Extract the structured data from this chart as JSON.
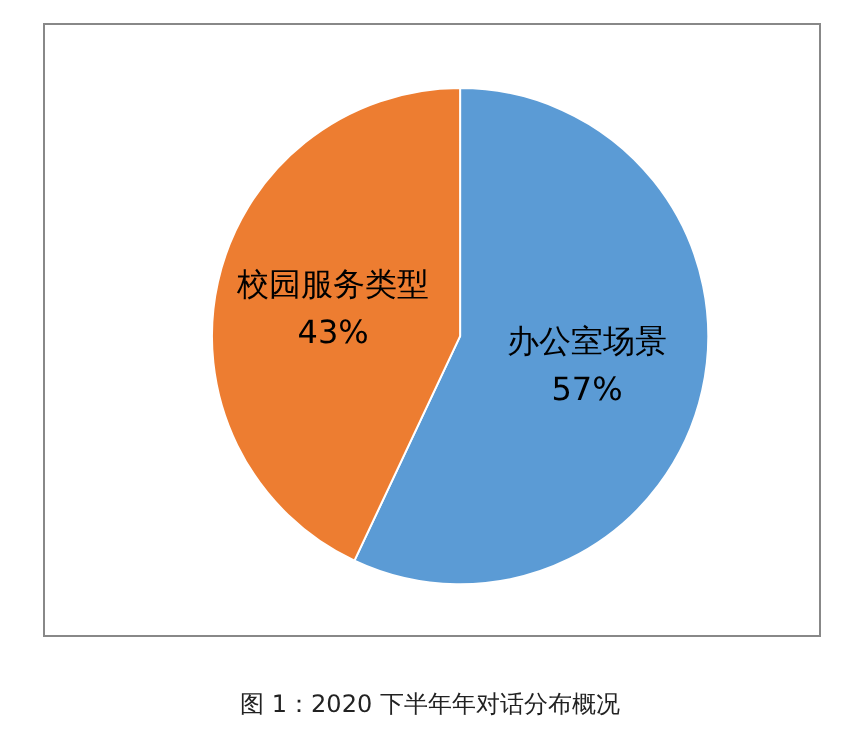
{
  "chart_data": {
    "type": "pie",
    "categories": [
      "办公室场景",
      "校园服务类型"
    ],
    "values": [
      57,
      43
    ],
    "value_labels": [
      "57%",
      "43%"
    ],
    "colors": [
      "#5b9bd5",
      "#ed7d31"
    ],
    "legend": false,
    "annotations": [
      "图 1：2020 下半年年对话分布概况"
    ]
  }
}
